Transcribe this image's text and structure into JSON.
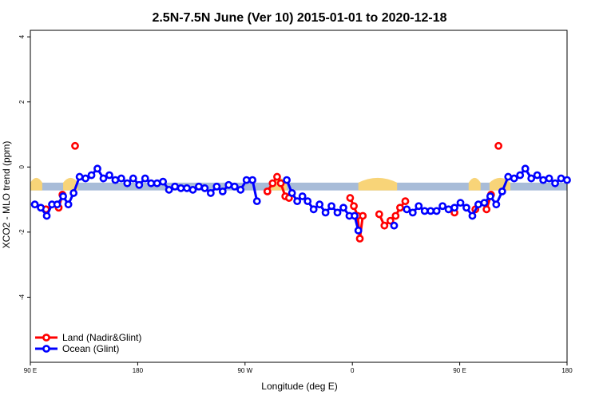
{
  "chart_data": {
    "type": "line",
    "title": "2.5N-7.5N June (Ver 10)   2015-01-01 to 2020-12-18",
    "xlabel": "Longitude (deg E)",
    "ylabel": "XCO2 - MLO trend (ppm)",
    "xlim": [
      90,
      450
    ],
    "ylim": [
      -6,
      4.2
    ],
    "x_ticks": [
      {
        "value": 90,
        "label": "90 E"
      },
      {
        "value": 162,
        "label": "180"
      },
      {
        "value": 234,
        "label": "90 W"
      },
      {
        "value": 306,
        "label": "0"
      },
      {
        "value": 378,
        "label": "90 E"
      },
      {
        "value": 450,
        "label": "180"
      }
    ],
    "y_ticks": [
      {
        "value": 4,
        "label": "4"
      },
      {
        "value": 2,
        "label": "2"
      },
      {
        "value": 0,
        "label": "0"
      },
      {
        "value": -2,
        "label": "-2"
      },
      {
        "value": -4,
        "label": "-4"
      }
    ],
    "band": {
      "y_min": -0.72,
      "y_max": -0.48,
      "color": "#a8bcd8"
    },
    "land_color": "#f8d478",
    "land_segments": [
      [
        90,
        98
      ],
      [
        112,
        122
      ],
      [
        251,
        262
      ],
      [
        310,
        336
      ],
      [
        384,
        392
      ],
      [
        398,
        412
      ]
    ],
    "legend_position": "bottom-left",
    "series": [
      {
        "name": "Land (Nadir&Glint)",
        "color": "#ff0000",
        "segments": [
          [
            [
              100.5,
              -1.3
            ]
          ],
          [
            [
              109,
              -1.25
            ],
            [
              111.5,
              -0.85
            ]
          ],
          [
            [
              120,
              0.65
            ]
          ],
          [
            [
              249,
              -0.75
            ],
            [
              252.5,
              -0.5
            ],
            [
              255.5,
              -0.3
            ],
            [
              258,
              -0.5
            ],
            [
              261,
              -0.9
            ],
            [
              263.5,
              -0.95
            ]
          ],
          [
            [
              304.5,
              -0.95
            ],
            [
              307,
              -1.2
            ],
            [
              309.5,
              -1.5
            ],
            [
              311,
              -2.2
            ],
            [
              313,
              -1.5
            ]
          ],
          [
            [
              324,
              -1.45
            ],
            [
              327.5,
              -1.8
            ],
            [
              331.5,
              -1.65
            ],
            [
              335,
              -1.5
            ],
            [
              338,
              -1.25
            ],
            [
              341.5,
              -1.05
            ]
          ],
          [
            [
              374.5,
              -1.4
            ]
          ],
          [
            [
              388.5,
              -1.3
            ]
          ],
          [
            [
              396,
              -1.3
            ],
            [
              399,
              -0.85
            ]
          ],
          [
            [
              404,
              0.65
            ]
          ]
        ]
      },
      {
        "name": "Ocean (Glint)",
        "color": "#0000ff",
        "segments": [
          [
            [
              93,
              -1.15
            ],
            [
              97,
              -1.25
            ],
            [
              101,
              -1.5
            ],
            [
              104.5,
              -1.15
            ],
            [
              108,
              -1.15
            ],
            [
              112,
              -0.9
            ],
            [
              115.5,
              -1.15
            ],
            [
              119,
              -0.8
            ],
            [
              123,
              -0.3
            ],
            [
              127,
              -0.35
            ],
            [
              131,
              -0.25
            ],
            [
              135,
              -0.05
            ],
            [
              139,
              -0.35
            ],
            [
              143,
              -0.25
            ],
            [
              147,
              -0.4
            ],
            [
              151,
              -0.35
            ],
            [
              155,
              -0.5
            ],
            [
              159,
              -0.35
            ],
            [
              163,
              -0.55
            ],
            [
              167,
              -0.35
            ],
            [
              171,
              -0.5
            ],
            [
              175,
              -0.5
            ],
            [
              179,
              -0.45
            ],
            [
              183,
              -0.7
            ],
            [
              187,
              -0.6
            ],
            [
              191,
              -0.65
            ],
            [
              195,
              -0.65
            ],
            [
              199,
              -0.7
            ],
            [
              203,
              -0.6
            ],
            [
              207,
              -0.65
            ],
            [
              211,
              -0.8
            ],
            [
              215,
              -0.6
            ],
            [
              219,
              -0.75
            ],
            [
              223,
              -0.55
            ],
            [
              227,
              -0.6
            ],
            [
              231,
              -0.7
            ],
            [
              235,
              -0.4
            ],
            [
              239,
              -0.4
            ],
            [
              242,
              -1.05
            ]
          ],
          [
            [
              262,
              -0.4
            ],
            [
              265.5,
              -0.8
            ],
            [
              269,
              -1.05
            ],
            [
              272.5,
              -0.9
            ],
            [
              276,
              -1.05
            ],
            [
              280,
              -1.3
            ],
            [
              284,
              -1.15
            ],
            [
              288,
              -1.4
            ],
            [
              292,
              -1.2
            ],
            [
              296,
              -1.4
            ],
            [
              300,
              -1.25
            ],
            [
              304,
              -1.5
            ],
            [
              307.5,
              -1.5
            ],
            [
              310,
              -1.95
            ]
          ],
          [
            [
              334,
              -1.8
            ]
          ],
          [
            [
              342.5,
              -1.3
            ],
            [
              346.5,
              -1.4
            ],
            [
              350.5,
              -1.2
            ],
            [
              354.5,
              -1.35
            ],
            [
              358.5,
              -1.35
            ],
            [
              362.5,
              -1.35
            ],
            [
              366.5,
              -1.2
            ],
            [
              370.5,
              -1.3
            ],
            [
              374.5,
              -1.25
            ],
            [
              378.5,
              -1.1
            ],
            [
              382.5,
              -1.25
            ],
            [
              386.5,
              -1.5
            ],
            [
              390.5,
              -1.15
            ],
            [
              394.5,
              -1.1
            ],
            [
              398.5,
              -0.9
            ],
            [
              402.5,
              -1.15
            ],
            [
              406.5,
              -0.75
            ],
            [
              410.5,
              -0.3
            ],
            [
              414.5,
              -0.35
            ],
            [
              418.5,
              -0.25
            ],
            [
              422,
              -0.05
            ],
            [
              426,
              -0.35
            ],
            [
              430,
              -0.25
            ],
            [
              434,
              -0.4
            ],
            [
              438,
              -0.35
            ],
            [
              442,
              -0.5
            ],
            [
              446,
              -0.35
            ],
            [
              450,
              -0.4
            ]
          ]
        ]
      }
    ]
  }
}
